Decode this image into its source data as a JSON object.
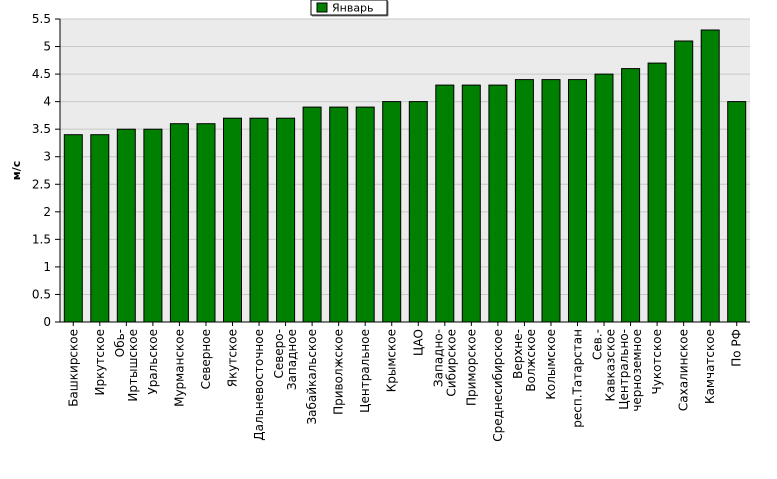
{
  "chart_data": {
    "type": "bar",
    "title": "",
    "xlabel": "",
    "ylabel": "м/с",
    "ylim": [
      0,
      5.5
    ],
    "ytick_step": 0.5,
    "yticks": [
      "0",
      "0.5",
      "1",
      "1.5",
      "2",
      "2.5",
      "3",
      "3.5",
      "4",
      "4.5",
      "5",
      "5.5"
    ],
    "grid": true,
    "legend_position": "top-center",
    "series": [
      {
        "name": "Январь",
        "color": "#008000",
        "values": [
          3.4,
          3.4,
          3.5,
          3.5,
          3.6,
          3.6,
          3.7,
          3.7,
          3.7,
          3.9,
          3.9,
          3.9,
          4.0,
          4.0,
          4.3,
          4.3,
          4.3,
          4.4,
          4.4,
          4.4,
          4.5,
          4.6,
          4.7,
          5.1,
          5.3,
          4.0
        ]
      }
    ],
    "categories": [
      [
        "Башкирское"
      ],
      [
        "Иркутское"
      ],
      [
        "Обь-",
        "Иртышское"
      ],
      [
        "Уральское"
      ],
      [
        "Мурманское"
      ],
      [
        "Северное"
      ],
      [
        "Якутское"
      ],
      [
        "Дальневосточное"
      ],
      [
        "Северо-",
        "Западное"
      ],
      [
        "Забайкальское"
      ],
      [
        "Приволжское"
      ],
      [
        "Центральное"
      ],
      [
        "Крымское"
      ],
      [
        "ЦАО"
      ],
      [
        "Западно-",
        "Сибирское"
      ],
      [
        "Приморское"
      ],
      [
        "Среднесибирское"
      ],
      [
        "Верхне-",
        "Волжское"
      ],
      [
        "Колымское"
      ],
      [
        "респ.Татарстан"
      ],
      [
        "Сев.-",
        "Кавказское"
      ],
      [
        "Центрально-",
        "черноземное"
      ],
      [
        "Чукотское"
      ],
      [
        "Сахалинское"
      ],
      [
        "Камчатское"
      ],
      [
        "По РФ"
      ]
    ]
  }
}
